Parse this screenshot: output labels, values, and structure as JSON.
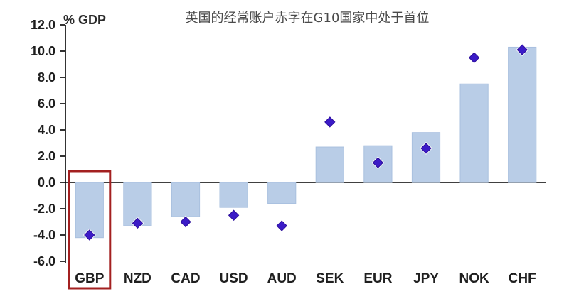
{
  "chart_data": {
    "type": "bar",
    "title": "英国的经常账户赤字在G10国家中处于首位",
    "ylabel": "% GDP",
    "categories": [
      "GBP",
      "NZD",
      "CAD",
      "USD",
      "AUD",
      "SEK",
      "EUR",
      "JPY",
      "NOK",
      "CHF"
    ],
    "ylim": [
      -6.0,
      12.0
    ],
    "yticks": [
      "12.0",
      "10.0",
      "8.0",
      "6.0",
      "4.0",
      "2.0",
      "0.0",
      "-2.0",
      "-4.0",
      "-6.0"
    ],
    "series": [
      {
        "type": "bar",
        "values": [
          -4.2,
          -3.3,
          -2.6,
          -1.9,
          -1.6,
          2.7,
          2.8,
          3.8,
          7.5,
          10.3
        ],
        "color": "#b9cde7"
      },
      {
        "type": "marker",
        "values": [
          -4.0,
          -3.1,
          -3.0,
          -2.5,
          -3.3,
          4.6,
          1.5,
          2.6,
          9.5,
          10.1
        ],
        "color": "#3b1bc7"
      }
    ],
    "highlight_category": "GBP",
    "highlight_color": "#a32020",
    "grid": false
  }
}
